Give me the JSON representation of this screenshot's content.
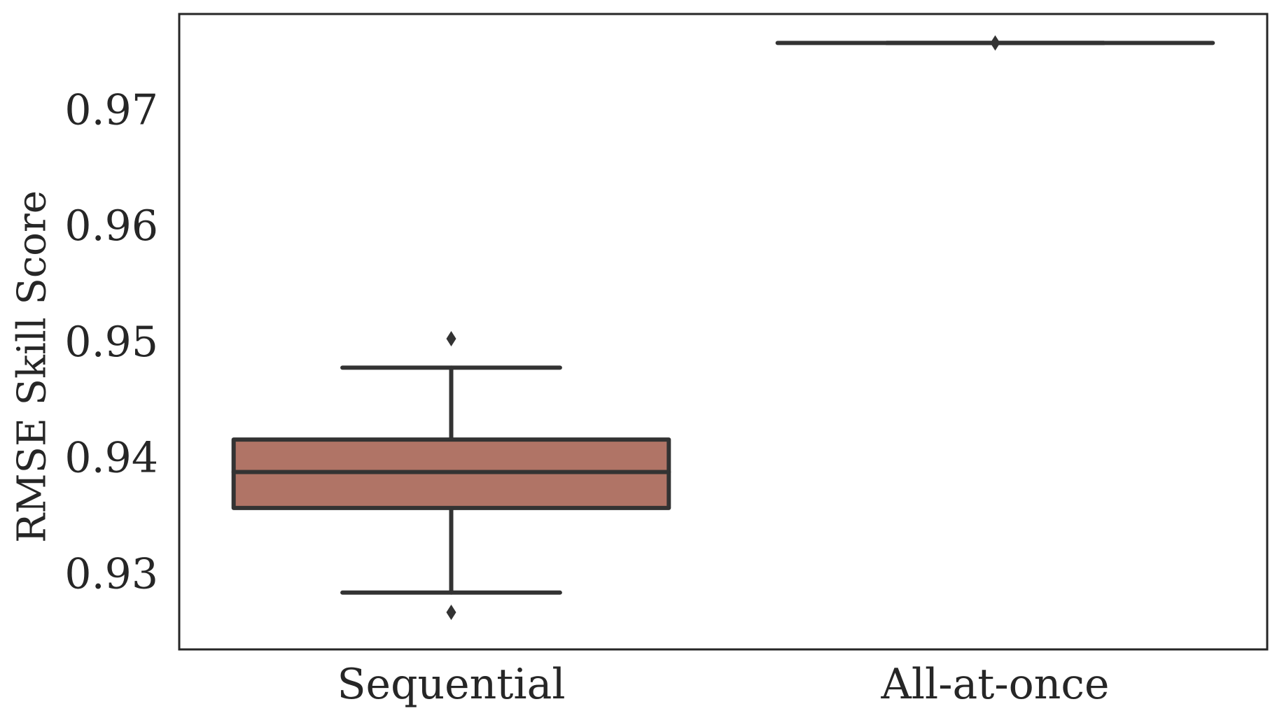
{
  "chart_data": {
    "type": "box",
    "title": "",
    "xlabel": "",
    "ylabel": "RMSE Skill Score",
    "ylim": [
      0.9235,
      0.9783
    ],
    "yticks": [
      0.93,
      0.94,
      0.95,
      0.96,
      0.97
    ],
    "ytick_labels": [
      "0.93",
      "0.94",
      "0.95",
      "0.96",
      "0.97"
    ],
    "categories": [
      "Sequential",
      "All-at-once"
    ],
    "grid": false,
    "legend": "none",
    "boxes": [
      {
        "category": "Sequential",
        "whisker_low": 0.9284,
        "q1": 0.9357,
        "median": 0.9388,
        "q3": 0.9416,
        "whisker_high": 0.9478,
        "outliers": [
          0.9267,
          0.9503
        ],
        "fill": "#b07466"
      },
      {
        "category": "All-at-once",
        "whisker_low": 0.9758,
        "q1": 0.9758,
        "median": 0.9758,
        "q3": 0.9758,
        "whisker_high": 0.9758,
        "outliers": [
          0.9758
        ],
        "fill": "#b07466"
      }
    ],
    "colors": {
      "box_fill": "#b07466",
      "line": "#333333",
      "text": "#262626",
      "frame": "#262626"
    }
  }
}
